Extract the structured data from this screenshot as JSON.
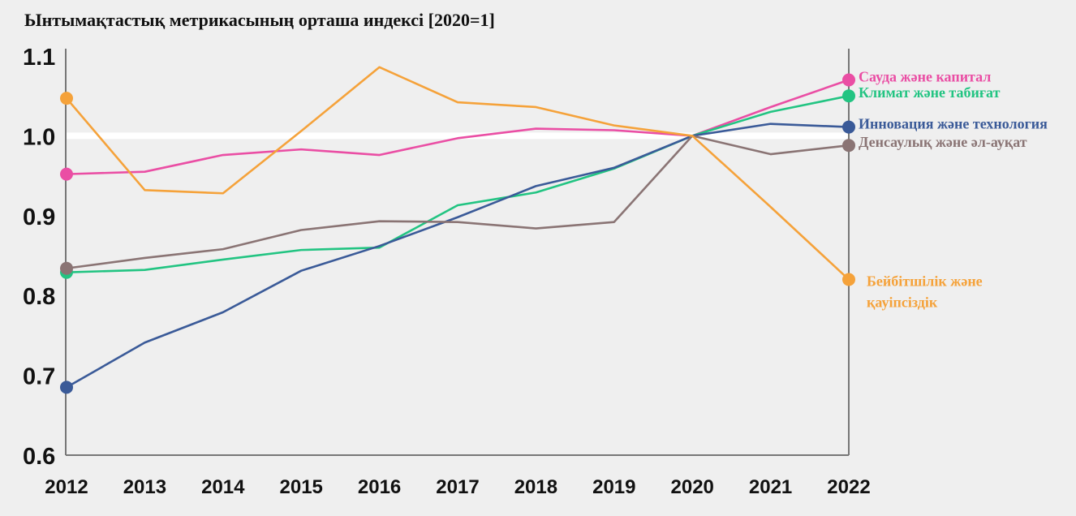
{
  "chart_data": {
    "type": "line",
    "title": "Ынтымақтастық метрикасының орташа индексі [2020=1]",
    "xlabel": "",
    "ylabel": "",
    "ylim": [
      0.6,
      1.1
    ],
    "yticks": [
      0.6,
      0.7,
      0.8,
      0.9,
      1.0,
      1.1
    ],
    "ytick_labels": [
      "0.6",
      "0.7",
      "0.8",
      "0.9",
      "1.0",
      "1.1"
    ],
    "categories": [
      "2012",
      "2013",
      "2014",
      "2015",
      "2016",
      "2017",
      "2018",
      "2019",
      "2020",
      "2021",
      "2022"
    ],
    "reference_line": 1.0,
    "grid": false,
    "legend": "right, direct labels",
    "series": [
      {
        "name": "Сауда және капитал",
        "color": "#ea4ea4",
        "values": [
          0.952,
          0.955,
          0.976,
          0.983,
          0.976,
          0.997,
          1.009,
          1.007,
          1.0,
          1.036,
          1.07
        ]
      },
      {
        "name": "Климат және табиғат",
        "color": "#22c482",
        "values": [
          0.829,
          0.832,
          0.845,
          0.857,
          0.86,
          0.913,
          0.929,
          0.959,
          1.0,
          1.03,
          1.05
        ]
      },
      {
        "name": "Инновация және технология",
        "color": "#3a5a98",
        "values": [
          0.685,
          0.741,
          0.779,
          0.831,
          0.862,
          0.898,
          0.937,
          0.96,
          1.0,
          1.015,
          1.011
        ]
      },
      {
        "name": "Денсаулық және әл-ауқат",
        "color": "#8a7474",
        "values": [
          0.834,
          0.847,
          0.858,
          0.882,
          0.893,
          0.892,
          0.884,
          0.892,
          1.0,
          0.977,
          0.988
        ]
      },
      {
        "name": "Бейбітшілік   және қауіпсіздік",
        "label_lines": [
          "Бейбітшілік   және",
          "қауіпсіздік"
        ],
        "color": "#f5a23a",
        "values": [
          1.047,
          0.932,
          0.928,
          1.006,
          1.086,
          1.042,
          1.036,
          1.013,
          1.0,
          0.911,
          0.82
        ]
      }
    ]
  }
}
